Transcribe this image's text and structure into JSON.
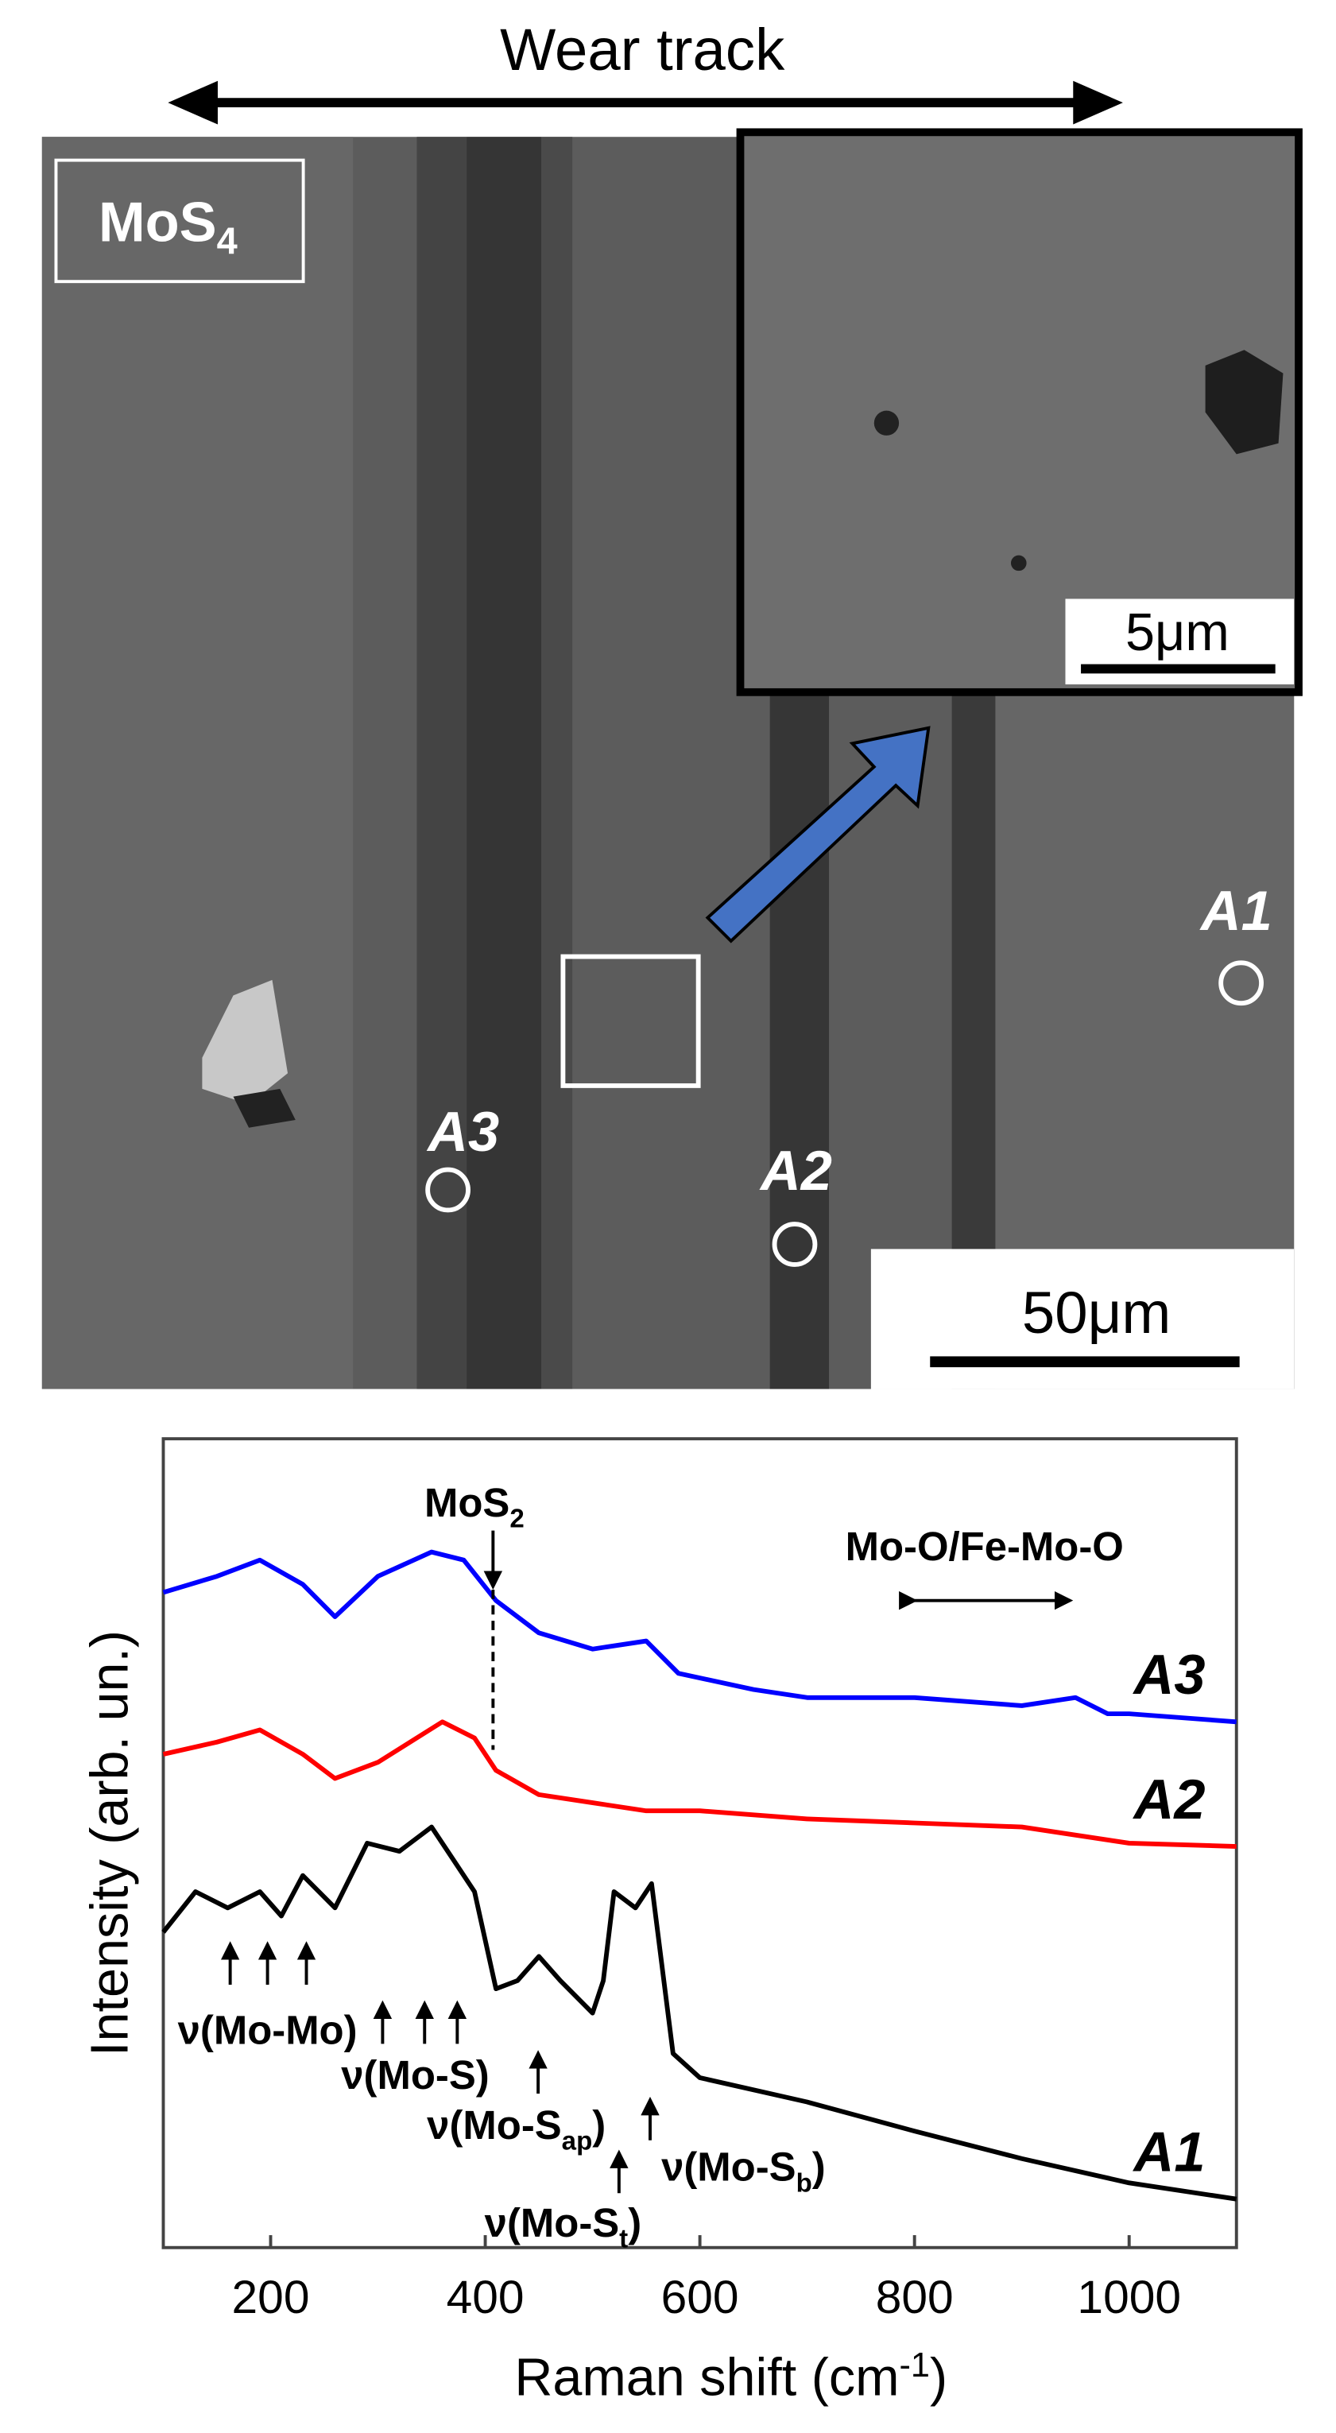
{
  "image": {
    "top_label": "Wear track",
    "material": {
      "text": "MoS",
      "sub": "4"
    },
    "inset_scale": "5μm",
    "scale": "50μm",
    "points": [
      "A1",
      "A2",
      "A3"
    ]
  },
  "chart_data": {
    "type": "line",
    "x_label": {
      "text": "Raman shift (cm",
      "sup": "-1",
      "tail": ")"
    },
    "y_label": "Intensity (arb. un.)",
    "xlim": [
      100,
      1100
    ],
    "xticks": [
      200,
      400,
      600,
      800,
      1000
    ],
    "ylim": [
      0,
      100
    ],
    "series": [
      {
        "name": "A3",
        "color": "#0000ff",
        "x": [
          100,
          150,
          190,
          230,
          260,
          300,
          350,
          380,
          410,
          450,
          500,
          550,
          580,
          650,
          700,
          800,
          900,
          950,
          980,
          1000,
          1100
        ],
        "values": [
          81,
          83,
          85,
          82,
          78,
          83,
          86,
          85,
          80,
          76,
          74,
          75,
          71,
          69,
          68,
          68,
          67,
          68,
          66,
          66,
          65
        ]
      },
      {
        "name": "A2",
        "color": "#ff0000",
        "x": [
          100,
          150,
          190,
          230,
          260,
          300,
          360,
          390,
          410,
          450,
          500,
          550,
          600,
          700,
          800,
          900,
          1000,
          1100
        ],
        "values": [
          61,
          62.5,
          64,
          61,
          58,
          60,
          65,
          63,
          59,
          56,
          55,
          54,
          54,
          53,
          52.5,
          52,
          50,
          49.6
        ]
      },
      {
        "name": "A1",
        "color": "#000000",
        "x": [
          100,
          130,
          160,
          190,
          210,
          230,
          260,
          290,
          320,
          350,
          370,
          390,
          410,
          430,
          450,
          470,
          500,
          510,
          520,
          540,
          555,
          575,
          600,
          700,
          800,
          900,
          1000,
          1100
        ],
        "values": [
          39,
          44,
          42,
          44,
          41,
          46,
          42,
          50,
          49,
          52,
          48,
          44,
          32,
          33,
          36,
          33,
          29,
          33,
          44,
          42,
          45,
          24,
          21,
          18,
          14.4,
          11,
          8,
          6
        ]
      }
    ],
    "annotations": [
      {
        "text": "MoS",
        "sub": "2"
      },
      {
        "text": "Mo-O/Fe-Mo-O"
      },
      {
        "text": "ν(Mo-Mo)"
      },
      {
        "text": "ν(Mo-S)"
      },
      {
        "text": "ν(Mo-S",
        "sub": "ap",
        "tail": ")"
      },
      {
        "text": "ν(Mo-S",
        "sub": "t",
        "tail": ")"
      },
      {
        "text": "ν(Mo-S",
        "sub": "b",
        "tail": ")"
      }
    ]
  }
}
